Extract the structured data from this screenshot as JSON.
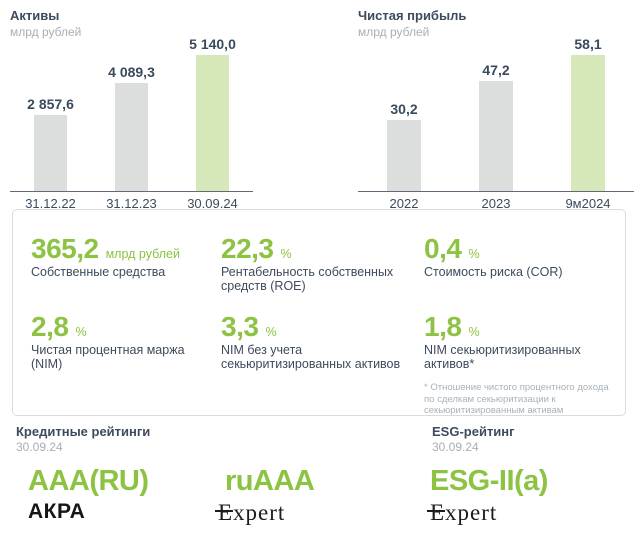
{
  "colors": {
    "accent_green": "#8dc343",
    "bar_green": "#d6e7ba",
    "bar_gray": "#dcdede",
    "dark_text": "#3d4b5c",
    "muted_text": "#a8aeb4",
    "axis": "#5f6c77"
  },
  "chart_data": [
    {
      "type": "bar",
      "title": "Активы",
      "subtitle": "млрд рублей",
      "categories": [
        "31.12.22",
        "31.12.23",
        "30.09.24"
      ],
      "values": [
        2857.6,
        4089.3,
        5140.0
      ],
      "value_labels": [
        "2 857,6",
        "4 089,3",
        "5 140,0"
      ],
      "bar_colors": [
        "#dcdede",
        "#dcdede",
        "#d6e7ba"
      ],
      "ylim": [
        0,
        5140
      ],
      "grid": false,
      "legend": false,
      "highlight_index": 2
    },
    {
      "type": "bar",
      "title": "Чистая прибыль",
      "subtitle": "млрд рублей",
      "categories": [
        "2022",
        "2023",
        "9м2024"
      ],
      "values": [
        30.2,
        47.2,
        58.1
      ],
      "value_labels": [
        "30,2",
        "47,2",
        "58,1"
      ],
      "bar_colors": [
        "#dcdede",
        "#dcdede",
        "#d6e7ba"
      ],
      "ylim": [
        0,
        58.1
      ],
      "grid": false,
      "legend": false,
      "highlight_index": 2
    }
  ],
  "metrics": {
    "items": [
      {
        "value": "365,2",
        "unit": "млрд рублей",
        "label": "Собственные средства"
      },
      {
        "value": "22,3",
        "unit": "%",
        "label": "Рентабельность собственных средств (ROE)"
      },
      {
        "value": "0,4",
        "unit": "%",
        "label": "Стоимость риска (COR)"
      },
      {
        "value": "2,8",
        "unit": "%",
        "label": "Чистая процентная маржа (NIM)"
      },
      {
        "value": "3,3",
        "unit": "%",
        "label": "NIM без учета секьюритизированных активов"
      },
      {
        "value": "1,8",
        "unit": "%",
        "label": "NIM секьюритизированных активов*"
      }
    ],
    "footnote": "* Отношение чистого процентного дохода по сделкам секьюритизации к секьюритизированным активам"
  },
  "ratings": {
    "credit": {
      "title": "Кредитные рейтинги",
      "date": "30.09.24",
      "items": [
        {
          "grade": "AAA(RU)",
          "agency": "АКРА"
        },
        {
          "grade": "ruAAA",
          "agency": "Expert"
        }
      ]
    },
    "esg": {
      "title": "ESG-рейтинг",
      "date": "30.09.24",
      "items": [
        {
          "grade": "ESG-II(a)",
          "agency": "Expert"
        }
      ]
    }
  }
}
